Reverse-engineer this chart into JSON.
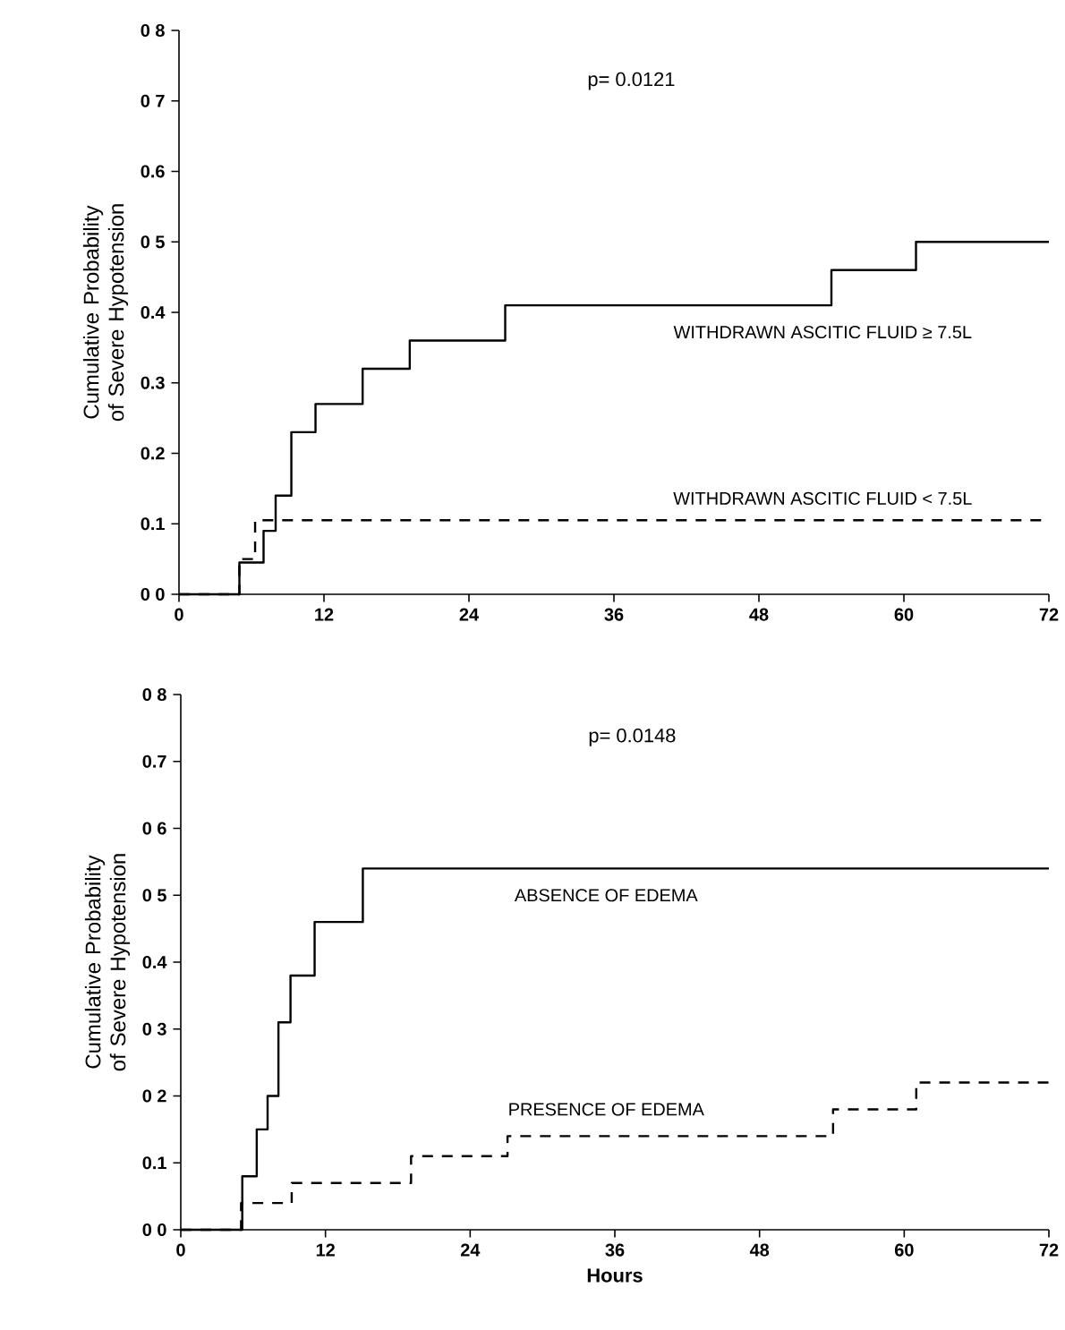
{
  "chart_data": [
    {
      "type": "step",
      "ylabel": "Cumulative Probability of Severe Hypotension",
      "annotations": [
        "p= 0.0121"
      ],
      "xlim": [
        0,
        72
      ],
      "ylim": [
        0,
        0.8
      ],
      "xticks": [
        0,
        12,
        24,
        36,
        48,
        60,
        72
      ],
      "yticks": [
        {
          "value": 0,
          "label": "0 0"
        },
        {
          "value": 0.1,
          "label": "0.1"
        },
        {
          "value": 0.2,
          "label": "0.2"
        },
        {
          "value": 0.3,
          "label": "0.3"
        },
        {
          "value": 0.4,
          "label": "0.4"
        },
        {
          "value": 0.5,
          "label": "0 5"
        },
        {
          "value": 0.6,
          "label": "0.6"
        },
        {
          "value": 0.7,
          "label": "0 7"
        },
        {
          "value": 0.8,
          "label": "0 8"
        }
      ],
      "legend": false,
      "grid": false,
      "series": [
        {
          "name": "WITHDRAWN ASCITIC FLUID ≥ 7.5L",
          "color": "#000000",
          "line_style": "solid",
          "x": [
            0,
            5,
            7,
            8,
            9.3,
            11.3,
            15.2,
            19.1,
            27,
            54,
            61,
            72
          ],
          "values": [
            0,
            0.045,
            0.09,
            0.14,
            0.23,
            0.27,
            0.32,
            0.36,
            0.41,
            0.46,
            0.5,
            0.5
          ]
        },
        {
          "name": "WITHDRAWN ASCITIC FLUID < 7.5L",
          "color": "#000000",
          "line_style": "dashed",
          "x": [
            0,
            5,
            6.3,
            72
          ],
          "values": [
            0,
            0.05,
            0.105,
            0.105
          ]
        }
      ]
    },
    {
      "type": "step",
      "xlabel": "Hours",
      "ylabel": "Cumulative Probability of Severe Hypotension",
      "annotations": [
        "p= 0.0148"
      ],
      "xlim": [
        0,
        72
      ],
      "ylim": [
        0,
        0.8
      ],
      "xticks": [
        0,
        12,
        24,
        36,
        48,
        60,
        72
      ],
      "yticks": [
        {
          "value": 0,
          "label": "0 0"
        },
        {
          "value": 0.1,
          "label": "0.1"
        },
        {
          "value": 0.2,
          "label": "0 2"
        },
        {
          "value": 0.3,
          "label": "0 3"
        },
        {
          "value": 0.4,
          "label": "0.4"
        },
        {
          "value": 0.5,
          "label": "0 5"
        },
        {
          "value": 0.6,
          "label": "0 6"
        },
        {
          "value": 0.7,
          "label": "0.7"
        },
        {
          "value": 0.8,
          "label": "0 8"
        }
      ],
      "legend": false,
      "grid": false,
      "series": [
        {
          "name": "ABSENCE OF EDEMA",
          "color": "#000000",
          "line_style": "solid",
          "x": [
            0,
            5.1,
            6.3,
            7.2,
            8.1,
            9.1,
            11.1,
            15.1,
            72
          ],
          "values": [
            0,
            0.08,
            0.15,
            0.2,
            0.31,
            0.38,
            0.46,
            0.54,
            0.54
          ]
        },
        {
          "name": "PRESENCE OF EDEMA",
          "color": "#000000",
          "line_style": "dashed",
          "x": [
            0,
            5,
            9.2,
            19.1,
            27.1,
            54.1,
            61,
            72
          ],
          "values": [
            0,
            0.04,
            0.07,
            0.11,
            0.14,
            0.18,
            0.22,
            0.22
          ]
        }
      ]
    }
  ]
}
